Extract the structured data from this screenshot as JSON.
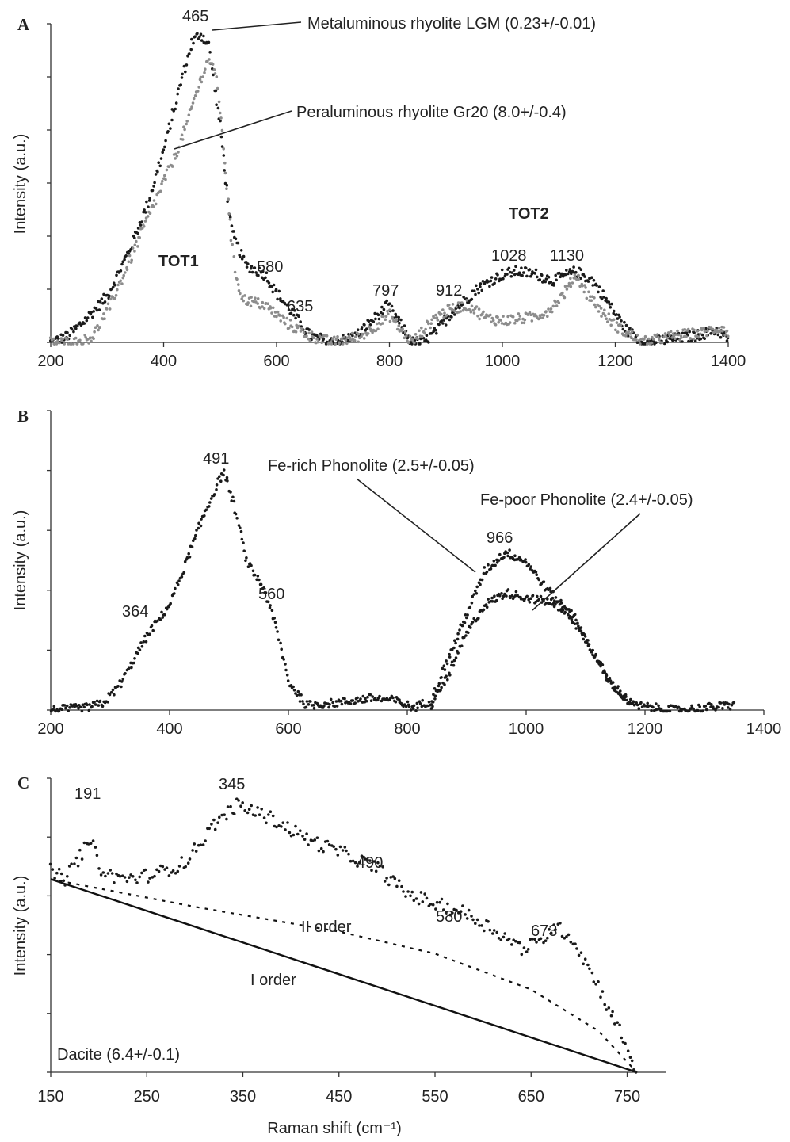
{
  "chart_data": [
    {
      "panel": "A",
      "type": "scatter",
      "ylabel": "Intensity (a.u.)",
      "xlim": [
        200,
        1400
      ],
      "ylim": [
        0,
        1
      ],
      "xticks": [
        200,
        400,
        600,
        800,
        1000,
        1200,
        1400
      ],
      "series": [
        {
          "name": "Metaluminous rhyolite LGM (0.23+/-0.01)",
          "color": "#1a1a1a",
          "points": [
            [
              200,
              0.0
            ],
            [
              230,
              0.02
            ],
            [
              260,
              0.07
            ],
            [
              300,
              0.15
            ],
            [
              340,
              0.3
            ],
            [
              370,
              0.44
            ],
            [
              400,
              0.62
            ],
            [
              430,
              0.84
            ],
            [
              450,
              0.97
            ],
            [
              465,
              1.0
            ],
            [
              480,
              0.96
            ],
            [
              500,
              0.7
            ],
            [
              520,
              0.36
            ],
            [
              545,
              0.25
            ],
            [
              580,
              0.22
            ],
            [
              600,
              0.16
            ],
            [
              635,
              0.08
            ],
            [
              660,
              0.02
            ],
            [
              700,
              0.0
            ],
            [
              740,
              0.02
            ],
            [
              775,
              0.08
            ],
            [
              797,
              0.12
            ],
            [
              815,
              0.07
            ],
            [
              840,
              0.0
            ],
            [
              860,
              0.0
            ],
            [
              880,
              0.03
            ],
            [
              912,
              0.1
            ],
            [
              960,
              0.18
            ],
            [
              1000,
              0.22
            ],
            [
              1028,
              0.23
            ],
            [
              1060,
              0.22
            ],
            [
              1090,
              0.2
            ],
            [
              1130,
              0.23
            ],
            [
              1160,
              0.2
            ],
            [
              1190,
              0.12
            ],
            [
              1220,
              0.04
            ],
            [
              1250,
              0.0
            ],
            [
              1300,
              0.01
            ],
            [
              1340,
              0.02
            ],
            [
              1380,
              0.04
            ],
            [
              1400,
              0.01
            ]
          ]
        },
        {
          "name": "Peraluminous rhyolite Gr20 (8.0+/-0.4)",
          "color": "#8c8c8c",
          "points": [
            [
              200,
              0.0
            ],
            [
              250,
              0.0
            ],
            [
              275,
              0.02
            ],
            [
              300,
              0.1
            ],
            [
              330,
              0.22
            ],
            [
              360,
              0.35
            ],
            [
              400,
              0.52
            ],
            [
              420,
              0.6
            ],
            [
              440,
              0.7
            ],
            [
              460,
              0.82
            ],
            [
              480,
              0.92
            ],
            [
              495,
              0.85
            ],
            [
              510,
              0.55
            ],
            [
              525,
              0.24
            ],
            [
              540,
              0.14
            ],
            [
              580,
              0.12
            ],
            [
              620,
              0.06
            ],
            [
              660,
              0.02
            ],
            [
              700,
              0.0
            ],
            [
              750,
              0.02
            ],
            [
              780,
              0.06
            ],
            [
              800,
              0.09
            ],
            [
              815,
              0.05
            ],
            [
              840,
              0.0
            ],
            [
              860,
              0.04
            ],
            [
              880,
              0.08
            ],
            [
              912,
              0.11
            ],
            [
              940,
              0.12
            ],
            [
              970,
              0.08
            ],
            [
              1000,
              0.07
            ],
            [
              1050,
              0.08
            ],
            [
              1080,
              0.1
            ],
            [
              1110,
              0.16
            ],
            [
              1130,
              0.22
            ],
            [
              1150,
              0.16
            ],
            [
              1180,
              0.09
            ],
            [
              1210,
              0.04
            ],
            [
              1250,
              0.0
            ],
            [
              1300,
              0.02
            ],
            [
              1350,
              0.03
            ],
            [
              1390,
              0.05
            ],
            [
              1400,
              0.02
            ]
          ]
        }
      ],
      "annotations": [
        "465",
        "580",
        "635",
        "797",
        "912",
        "1028",
        "1130",
        "TOT1",
        "TOT2"
      ]
    },
    {
      "panel": "B",
      "type": "scatter",
      "ylabel": "Intensity (a.u.)",
      "xlim": [
        200,
        1400
      ],
      "ylim": [
        0,
        1
      ],
      "xticks": [
        200,
        400,
        600,
        800,
        1000,
        1200,
        1400
      ],
      "series": [
        {
          "name": "Fe-rich Phonolite (2.5+/-0.05)",
          "color": "#1a1a1a",
          "points": [
            [
              200,
              0.0
            ],
            [
              260,
              0.01
            ],
            [
              290,
              0.03
            ],
            [
              320,
              0.12
            ],
            [
              364,
              0.32
            ],
            [
              400,
              0.44
            ],
            [
              430,
              0.63
            ],
            [
              460,
              0.83
            ],
            [
              491,
              1.0
            ],
            [
              510,
              0.84
            ],
            [
              530,
              0.62
            ],
            [
              560,
              0.5
            ],
            [
              580,
              0.34
            ],
            [
              600,
              0.12
            ],
            [
              630,
              0.02
            ],
            [
              680,
              0.03
            ],
            [
              740,
              0.05
            ],
            [
              780,
              0.04
            ],
            [
              810,
              0.01
            ],
            [
              840,
              0.04
            ],
            [
              870,
              0.22
            ],
            [
              900,
              0.4
            ],
            [
              930,
              0.58
            ],
            [
              966,
              0.66
            ],
            [
              1000,
              0.62
            ],
            [
              1030,
              0.52
            ],
            [
              1060,
              0.44
            ],
            [
              1100,
              0.3
            ],
            [
              1140,
              0.12
            ],
            [
              1180,
              0.02
            ],
            [
              1250,
              0.0
            ],
            [
              1300,
              0.01
            ],
            [
              1350,
              0.02
            ]
          ]
        },
        {
          "name": "Fe-poor Phonolite (2.4+/-0.05)",
          "color": "#1a1a1a",
          "points": [
            [
              840,
              0.02
            ],
            [
              870,
              0.15
            ],
            [
              900,
              0.32
            ],
            [
              930,
              0.44
            ],
            [
              966,
              0.49
            ],
            [
              1000,
              0.47
            ],
            [
              1040,
              0.45
            ],
            [
              1080,
              0.4
            ],
            [
              1100,
              0.3
            ],
            [
              1140,
              0.12
            ],
            [
              1180,
              0.02
            ]
          ]
        }
      ],
      "annotations": [
        "491",
        "364",
        "560",
        "966"
      ]
    },
    {
      "panel": "C",
      "type": "scatter",
      "xlabel": "Raman shift (cm⁻¹)",
      "ylabel": "Intensity (a.u.)",
      "xlim": [
        150,
        790
      ],
      "ylim": [
        0,
        1
      ],
      "xticks": [
        150,
        250,
        350,
        450,
        550,
        650,
        750
      ],
      "series": [
        {
          "name": "Dacite (6.4+/-0.1)",
          "color": "#1a1a1a",
          "points": [
            [
              150,
              0.73
            ],
            [
              165,
              0.7
            ],
            [
              180,
              0.78
            ],
            [
              191,
              0.84
            ],
            [
              205,
              0.72
            ],
            [
              230,
              0.7
            ],
            [
              260,
              0.72
            ],
            [
              290,
              0.76
            ],
            [
              320,
              0.9
            ],
            [
              345,
              0.97
            ],
            [
              380,
              0.92
            ],
            [
              420,
              0.84
            ],
            [
              450,
              0.8
            ],
            [
              490,
              0.74
            ],
            [
              520,
              0.65
            ],
            [
              550,
              0.61
            ],
            [
              580,
              0.58
            ],
            [
              610,
              0.52
            ],
            [
              640,
              0.45
            ],
            [
              660,
              0.47
            ],
            [
              673,
              0.53
            ],
            [
              690,
              0.5
            ],
            [
              710,
              0.38
            ],
            [
              730,
              0.24
            ],
            [
              750,
              0.09
            ],
            [
              760,
              0.0
            ]
          ]
        }
      ],
      "lines": [
        {
          "name": "I order",
          "style": "solid",
          "points": [
            [
              150,
              0.7
            ],
            [
              760,
              0.0
            ]
          ]
        },
        {
          "name": "II order",
          "style": "dotted",
          "points": [
            [
              150,
              0.7
            ],
            [
              300,
              0.6
            ],
            [
              450,
              0.51
            ],
            [
              550,
              0.43
            ],
            [
              650,
              0.3
            ],
            [
              720,
              0.15
            ],
            [
              760,
              0.0
            ]
          ]
        }
      ],
      "annotations": [
        "191",
        "345",
        "490",
        "580",
        "673"
      ]
    }
  ],
  "labels": {
    "panel_a": "A",
    "panel_b": "B",
    "panel_c": "C",
    "ylabel": "Intensity (a.u.)",
    "xlabel": "Raman shift (cm⁻¹)",
    "lgm": "Metaluminous rhyolite LGM (0.23+/-0.01)",
    "gr20": "Peraluminous rhyolite Gr20 (8.0+/-0.4)",
    "tot1": "TOT1",
    "tot2": "TOT2",
    "fe_rich": "Fe-rich Phonolite (2.5+/-0.05)",
    "fe_poor": "Fe-poor Phonolite (2.4+/-0.05)",
    "dacite": "Dacite (6.4+/-0.1)",
    "order1": "I order",
    "order2": "II order",
    "a465": "465",
    "a580": "580",
    "a635": "635",
    "a797": "797",
    "a912": "912",
    "a1028": "1028",
    "a1130": "1130",
    "b491": "491",
    "b364": "364",
    "b560": "560",
    "b966": "966",
    "c191": "191",
    "c345": "345",
    "c490": "490",
    "c580": "580",
    "c673": "673"
  }
}
